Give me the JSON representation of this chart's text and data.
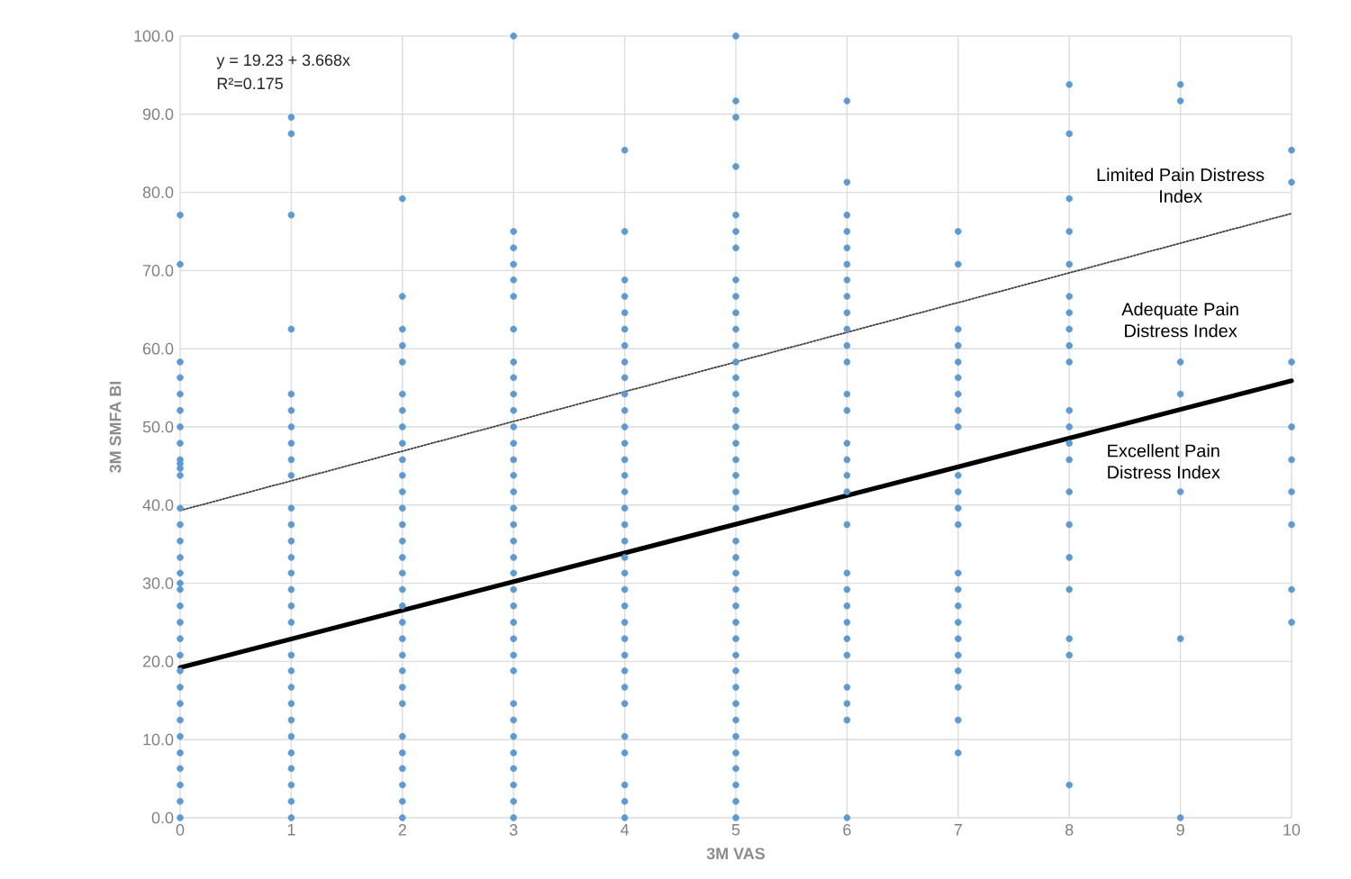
{
  "chart_data": {
    "type": "scatter",
    "xlabel": "3M VAS",
    "ylabel": "3M SMFA BI",
    "annotations": [
      "y = 19.23 + 3.668x",
      "R²=0.175",
      "Limited Pain Distress Index",
      "Adequate Pain Distress Index",
      "Excellent Pain Distress Index"
    ],
    "series": [
      {
        "color": "#5b9bd5",
        "marker": "circle",
        "x": [
          0,
          0,
          0,
          0,
          0,
          0,
          0,
          0,
          0,
          0,
          0,
          0,
          0,
          0,
          0,
          0,
          0,
          0,
          0,
          0,
          0,
          0,
          0,
          0,
          0,
          0,
          0,
          0,
          0,
          0,
          0,
          0,
          0,
          1,
          1,
          1,
          1,
          1,
          1,
          1,
          1,
          1,
          1,
          1,
          1,
          1,
          1,
          1,
          1,
          1,
          1,
          1,
          1,
          1,
          1,
          1,
          1,
          1,
          1,
          1,
          1,
          1,
          2,
          2,
          2,
          2,
          2,
          2,
          2,
          2,
          2,
          2,
          2,
          2,
          2,
          2,
          2,
          2,
          2,
          2,
          2,
          2,
          2,
          2,
          2,
          2,
          2,
          2,
          2,
          2,
          2,
          2,
          2,
          3,
          3,
          3,
          3,
          3,
          3,
          3,
          3,
          3,
          3,
          3,
          3,
          3,
          3,
          3,
          3,
          3,
          3,
          3,
          3,
          3,
          3,
          3,
          3,
          3,
          3,
          3,
          3,
          3,
          3,
          3,
          3,
          3,
          3,
          3,
          4,
          4,
          4,
          4,
          4,
          4,
          4,
          4,
          4,
          4,
          4,
          4,
          4,
          4,
          4,
          4,
          4,
          4,
          4,
          4,
          4,
          4,
          4,
          4,
          4,
          4,
          4,
          4,
          4,
          4,
          4,
          4,
          4,
          4,
          5,
          5,
          5,
          5,
          5,
          5,
          5,
          5,
          5,
          5,
          5,
          5,
          5,
          5,
          5,
          5,
          5,
          5,
          5,
          5,
          5,
          5,
          5,
          5,
          5,
          5,
          5,
          5,
          5,
          5,
          5,
          5,
          5,
          5,
          5,
          5,
          5,
          5,
          5,
          5,
          6,
          6,
          6,
          6,
          6,
          6,
          6,
          6,
          6,
          6,
          6,
          6,
          6,
          6,
          6,
          6,
          6,
          6,
          6,
          6,
          6,
          6,
          6,
          6,
          6,
          6,
          6,
          6,
          6,
          7,
          7,
          7,
          7,
          7,
          7,
          7,
          7,
          7,
          7,
          7,
          7,
          7,
          7,
          7,
          7,
          7,
          7,
          7,
          7,
          7,
          7,
          7,
          8,
          8,
          8,
          8,
          8,
          8,
          8,
          8,
          8,
          8,
          8,
          8,
          8,
          8,
          8,
          8,
          8,
          8,
          8,
          8,
          8,
          9,
          9,
          9,
          9,
          9,
          9,
          9,
          10,
          10,
          10,
          10,
          10,
          10,
          10,
          10,
          10
        ],
        "values": [
          0,
          2.1,
          4.2,
          6.3,
          8.3,
          10.4,
          12.5,
          14.6,
          16.7,
          18.8,
          20.8,
          22.9,
          25,
          27.1,
          29.2,
          30,
          31.3,
          33.3,
          35.4,
          37.5,
          39.6,
          43.8,
          44.7,
          45.3,
          45.8,
          47.9,
          50,
          52.1,
          54.2,
          56.3,
          58.3,
          70.8,
          77.1,
          0,
          2.1,
          4.2,
          6.3,
          8.3,
          10.4,
          12.5,
          14.6,
          16.7,
          18.8,
          20.8,
          25,
          27.1,
          29.2,
          31.3,
          33.3,
          35.4,
          37.5,
          39.6,
          43.8,
          45.8,
          47.9,
          50,
          52.1,
          54.2,
          62.5,
          77.1,
          87.5,
          89.6,
          0,
          2.1,
          4.2,
          6.3,
          8.3,
          10.4,
          14.6,
          16.7,
          18.8,
          20.8,
          22.9,
          25,
          27.1,
          29.2,
          31.3,
          33.3,
          35.4,
          37.5,
          39.6,
          41.7,
          43.8,
          45.8,
          47.9,
          50,
          52.1,
          54.2,
          58.3,
          60.4,
          62.5,
          66.7,
          79.2,
          0,
          2.1,
          4.2,
          6.3,
          8.3,
          10.4,
          12.5,
          14.6,
          18.8,
          20.8,
          22.9,
          25,
          27.1,
          29.2,
          31.3,
          33.3,
          35.4,
          37.5,
          39.6,
          41.7,
          43.8,
          45.8,
          47.9,
          50,
          52.1,
          54.2,
          56.3,
          58.3,
          62.5,
          66.7,
          68.8,
          70.8,
          72.9,
          75,
          100,
          0,
          2.1,
          4.2,
          8.3,
          10.4,
          14.6,
          16.7,
          18.8,
          20.8,
          22.9,
          25,
          27.1,
          29.2,
          31.3,
          33.3,
          35.4,
          37.5,
          39.6,
          41.7,
          43.8,
          45.8,
          47.9,
          50,
          52.1,
          54.2,
          56.3,
          58.3,
          60.4,
          62.5,
          64.6,
          66.7,
          68.8,
          75,
          85.4,
          0,
          2.1,
          4.2,
          6.3,
          8.3,
          10.4,
          12.5,
          14.6,
          16.7,
          18.8,
          20.8,
          22.9,
          25,
          27.1,
          29.2,
          31.3,
          33.3,
          35.4,
          39.6,
          41.7,
          43.8,
          45.8,
          47.9,
          50,
          52.1,
          54.2,
          56.3,
          58.3,
          60.4,
          62.5,
          64.6,
          66.7,
          68.8,
          72.9,
          75,
          77.1,
          83.3,
          89.6,
          91.7,
          100,
          0,
          12.5,
          14.6,
          16.7,
          20.8,
          22.9,
          25,
          27.1,
          29.2,
          31.3,
          37.5,
          41.7,
          43.8,
          45.8,
          47.9,
          52.1,
          54.2,
          58.3,
          60.4,
          62.5,
          64.6,
          66.7,
          68.8,
          70.8,
          72.9,
          75,
          77.1,
          81.3,
          91.7,
          8.3,
          12.5,
          16.7,
          18.8,
          20.8,
          22.9,
          25,
          27.1,
          29.2,
          31.3,
          37.5,
          39.6,
          41.7,
          43.8,
          50,
          52.1,
          54.2,
          56.3,
          58.3,
          60.4,
          62.5,
          70.8,
          75,
          4.2,
          20.8,
          22.9,
          29.2,
          33.3,
          37.5,
          41.7,
          45.8,
          47.9,
          50,
          52.1,
          58.3,
          60.4,
          62.5,
          64.6,
          66.7,
          70.8,
          75,
          79.2,
          87.5,
          93.8,
          0,
          22.9,
          41.7,
          54.2,
          58.3,
          91.7,
          93.8,
          25,
          29.2,
          37.5,
          41.7,
          45.8,
          50,
          58.3,
          81.3,
          85.4
        ]
      },
      {
        "type": "line",
        "color": "#000000",
        "line_style": "solid",
        "x": [
          0,
          10
        ],
        "values": [
          19.2,
          55.9
        ]
      },
      {
        "type": "line",
        "color": "#404040",
        "line_style": "dotted",
        "x": [
          0,
          10
        ],
        "values": [
          39.3,
          77.3
        ]
      }
    ],
    "xlim": [
      0,
      10
    ],
    "ylim": [
      0,
      100
    ],
    "xticks": [
      0,
      1,
      2,
      3,
      4,
      5,
      6,
      7,
      8,
      9,
      10
    ],
    "yticks": [
      {
        "value": 0,
        "label": "0.0"
      },
      {
        "value": 10,
        "label": "10.0"
      },
      {
        "value": 20,
        "label": "20.0"
      },
      {
        "value": 30,
        "label": "30.0"
      },
      {
        "value": 40,
        "label": "40.0"
      },
      {
        "value": 50,
        "label": "50.0"
      },
      {
        "value": 60,
        "label": "60.0"
      },
      {
        "value": 70,
        "label": "70.0"
      },
      {
        "value": 80,
        "label": "80.0"
      },
      {
        "value": 90,
        "label": "90.0"
      },
      {
        "value": 100,
        "label": "100.0"
      }
    ],
    "grid": true
  }
}
